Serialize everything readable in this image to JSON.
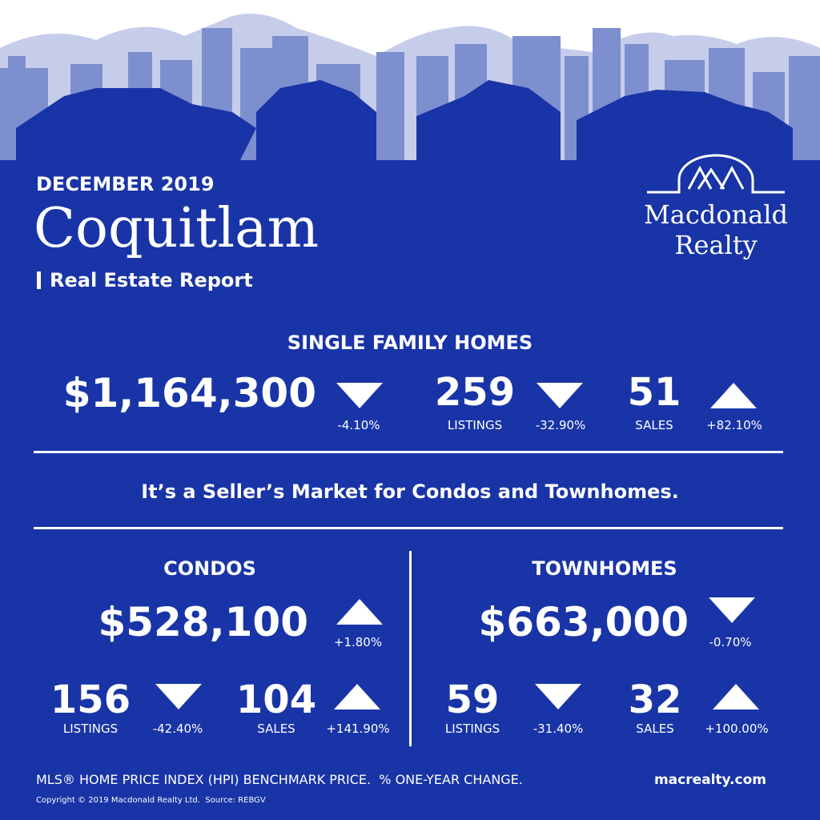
{
  "header": {
    "month": "DECEMBER 2019",
    "city": "Coquitlam",
    "subtitle": "Real Estate Report"
  },
  "logo": {
    "line1": "Macdonald",
    "line2": "Realty"
  },
  "single_family": {
    "title": "SINGLE FAMILY HOMES",
    "price": {
      "value": "$1,164,300",
      "change": "-4.10%",
      "direction": "down"
    },
    "listings": {
      "value": "259",
      "label": "LISTINGS",
      "change": "-32.90%",
      "direction": "down"
    },
    "sales": {
      "value": "51",
      "label": "SALES",
      "change": "+82.10%",
      "direction": "up"
    }
  },
  "message": "It’s a Seller’s Market for Condos and Townhomes.",
  "condos": {
    "title": "CONDOS",
    "price": {
      "value": "$528,100",
      "change": "+1.80%",
      "direction": "up"
    },
    "listings": {
      "value": "156",
      "label": "LISTINGS",
      "change": "-42.40%",
      "direction": "down"
    },
    "sales": {
      "value": "104",
      "label": "SALES",
      "change": "+141.90%",
      "direction": "up"
    }
  },
  "townhomes": {
    "title": "TOWNHOMES",
    "price": {
      "value": "$663,000",
      "change": "-0.70%",
      "direction": "down"
    },
    "listings": {
      "value": "59",
      "label": "LISTINGS",
      "change": "-31.40%",
      "direction": "down"
    },
    "sales": {
      "value": "32",
      "label": "SALES",
      "change": "+100.00%",
      "direction": "up"
    }
  },
  "footer": {
    "note": "MLS® HOME PRICE INDEX (HPI) BENCHMARK PRICE.  % ONE-YEAR CHANGE.",
    "site": "macrealty.com",
    "copyright": "Copyright © 2019 Macdonald Realty Ltd.  Source: REBGV"
  }
}
